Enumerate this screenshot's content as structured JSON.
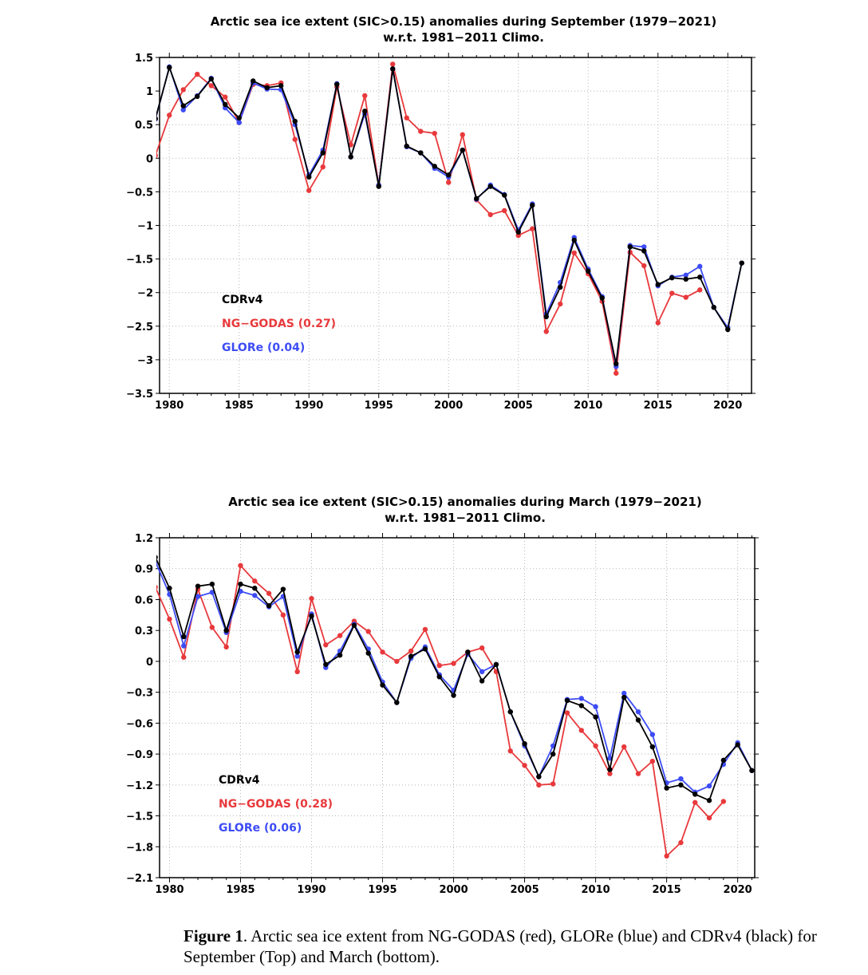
{
  "chart_data": [
    {
      "type": "line",
      "title": "Arctic sea ice extent (SIC>0.15) anomalies during September (1979−2021)",
      "subtitle": "w.r.t. 1981−2011 Climo.",
      "xlabel": "",
      "ylabel": "",
      "xlim": [
        1979.3,
        2021.7
      ],
      "ylim": [
        -3.5,
        1.5
      ],
      "x_ticks": [
        1980,
        1985,
        1990,
        1995,
        2000,
        2005,
        2010,
        2015,
        2020
      ],
      "y_ticks": [
        1.5,
        1,
        0.5,
        0,
        -0.5,
        -1,
        -1.5,
        -2,
        -2.5,
        -3,
        -3.5
      ],
      "y_tick_labels": [
        "1.5",
        "1",
        "0.5",
        "0",
        "−0.5",
        "−1",
        "−1.5",
        "−2",
        "−2.5",
        "−3",
        "−3.5"
      ],
      "grid": true,
      "legend_position": "bottom-left",
      "x": [
        1979,
        1980,
        1981,
        1982,
        1983,
        1984,
        1985,
        1986,
        1987,
        1988,
        1989,
        1990,
        1991,
        1992,
        1993,
        1994,
        1995,
        1996,
        1997,
        1998,
        1999,
        2000,
        2001,
        2002,
        2003,
        2004,
        2005,
        2006,
        2007,
        2008,
        2009,
        2010,
        2011,
        2012,
        2013,
        2014,
        2015,
        2016,
        2017,
        2018,
        2019,
        2020,
        2021
      ],
      "series": [
        {
          "name": "CDRv4",
          "color": "#000000",
          "values": [
            0.59,
            1.35,
            0.78,
            0.92,
            1.18,
            0.8,
            0.6,
            1.15,
            1.05,
            1.08,
            0.55,
            -0.28,
            0.08,
            1.1,
            0.02,
            0.7,
            -0.42,
            1.33,
            0.18,
            0.08,
            -0.12,
            -0.25,
            0.12,
            -0.6,
            -0.42,
            -0.55,
            -1.1,
            -0.7,
            -2.36,
            -1.92,
            -1.22,
            -1.68,
            -2.08,
            -3.06,
            -1.32,
            -1.38,
            -1.88,
            -1.78,
            -1.8,
            -1.77,
            -2.22,
            -2.55,
            -1.56
          ]
        },
        {
          "name": "NG−GODAS (0.27)",
          "color": "#e8393c",
          "values": [
            0.04,
            0.64,
            1.02,
            1.25,
            1.08,
            0.91,
            0.53,
            1.1,
            1.08,
            1.12,
            0.28,
            -0.48,
            -0.13,
            1.06,
            0.2,
            0.93,
            -0.4,
            1.4,
            0.6,
            0.4,
            0.37,
            -0.36,
            0.35,
            -0.62,
            -0.84,
            -0.78,
            -1.15,
            -1.05,
            -2.58,
            -2.17,
            -1.41,
            -1.72,
            -2.13,
            -3.2,
            -1.4,
            -1.6,
            -2.45,
            -2.01,
            -2.07,
            -1.96,
            null,
            null,
            null
          ]
        },
        {
          "name": "GLORe (0.04)",
          "color": "#3d4cf5",
          "values": [
            0.58,
            1.36,
            0.72,
            0.93,
            1.19,
            0.75,
            0.53,
            1.12,
            1.03,
            1.02,
            0.5,
            -0.25,
            0.12,
            1.11,
            0.02,
            0.66,
            -0.4,
            1.33,
            0.17,
            0.08,
            -0.15,
            -0.28,
            0.12,
            -0.61,
            -0.4,
            -0.54,
            -1.07,
            -0.68,
            -2.32,
            -1.85,
            -1.18,
            -1.65,
            -2.06,
            -3.1,
            -1.3,
            -1.32,
            -1.9,
            -1.77,
            -1.74,
            -1.61,
            -2.22,
            -2.52,
            -1.56
          ]
        }
      ]
    },
    {
      "type": "line",
      "title": "Arctic sea ice extent (SIC>0.15) anomalies during March (1979−2021)",
      "subtitle": "w.r.t. 1981−2011 Climo.",
      "xlabel": "",
      "ylabel": "",
      "xlim": [
        1979.3,
        2021.2
      ],
      "ylim": [
        -2.1,
        1.2
      ],
      "x_ticks": [
        1980,
        1985,
        1990,
        1995,
        2000,
        2005,
        2010,
        2015,
        2020
      ],
      "y_ticks": [
        1.2,
        0.9,
        0.6,
        0.3,
        0,
        -0.3,
        -0.6,
        -0.9,
        -1.2,
        -1.5,
        -1.8,
        -2.1
      ],
      "y_tick_labels": [
        "1.2",
        "0.9",
        "0.6",
        "0.3",
        "0",
        "−0.3",
        "−0.6",
        "−0.9",
        "−1.2",
        "−1.5",
        "−1.8",
        "−2.1"
      ],
      "grid": true,
      "legend_position": "bottom-left",
      "x": [
        1979,
        1980,
        1981,
        1982,
        1983,
        1984,
        1985,
        1986,
        1987,
        1988,
        1989,
        1990,
        1991,
        1992,
        1993,
        1994,
        1995,
        1996,
        1997,
        1998,
        1999,
        2000,
        2001,
        2002,
        2003,
        2004,
        2005,
        2006,
        2007,
        2008,
        2009,
        2010,
        2011,
        2012,
        2013,
        2014,
        2015,
        2016,
        2017,
        2018,
        2019,
        2020,
        2021
      ],
      "series": [
        {
          "name": "CDRv4",
          "color": "#000000",
          "values": [
            1.01,
            0.71,
            0.24,
            0.73,
            0.75,
            0.3,
            0.75,
            0.71,
            0.54,
            0.7,
            0.09,
            0.44,
            -0.03,
            0.06,
            0.35,
            0.08,
            -0.23,
            -0.4,
            0.05,
            0.12,
            -0.15,
            -0.33,
            0.09,
            -0.19,
            -0.03,
            -0.49,
            -0.8,
            -1.12,
            -0.9,
            -0.38,
            -0.43,
            -0.54,
            -1.05,
            -0.35,
            -0.57,
            -0.83,
            -1.23,
            -1.2,
            -1.29,
            -1.35,
            -0.96,
            -0.81,
            -1.06
          ]
        },
        {
          "name": "NG−GODAS (0.28)",
          "color": "#e8393c",
          "values": [
            0.72,
            0.41,
            0.04,
            0.7,
            0.33,
            0.14,
            0.93,
            0.78,
            0.66,
            0.45,
            -0.1,
            0.61,
            0.16,
            0.25,
            0.39,
            0.29,
            0.09,
            0.0,
            0.1,
            0.31,
            -0.04,
            -0.02,
            0.09,
            0.13,
            -0.1,
            -0.87,
            -1.01,
            -1.2,
            -1.19,
            -0.5,
            -0.67,
            -0.82,
            -1.09,
            -0.83,
            -1.09,
            -0.97,
            -1.89,
            -1.76,
            -1.37,
            -1.52,
            -1.36,
            null,
            null
          ]
        },
        {
          "name": "GLORe (0.06)",
          "color": "#3d4cf5",
          "values": [
            0.97,
            0.65,
            0.15,
            0.63,
            0.67,
            0.28,
            0.68,
            0.64,
            0.53,
            0.63,
            0.05,
            0.46,
            -0.06,
            0.1,
            0.36,
            0.12,
            -0.2,
            -0.4,
            0.03,
            0.14,
            -0.13,
            -0.28,
            0.07,
            -0.1,
            -0.03,
            -0.49,
            -0.82,
            -1.12,
            -0.82,
            -0.37,
            -0.36,
            -0.44,
            -0.94,
            -0.31,
            -0.49,
            -0.71,
            -1.18,
            -1.14,
            -1.27,
            -1.21,
            -1.0,
            -0.79,
            -1.06
          ]
        }
      ]
    }
  ],
  "caption": {
    "label": "Figure 1",
    "text": ".  Arctic sea ice extent from NG-GODAS (red), GLORe (blue) and CDRv4 (black) for September (Top) and March (bottom)."
  }
}
